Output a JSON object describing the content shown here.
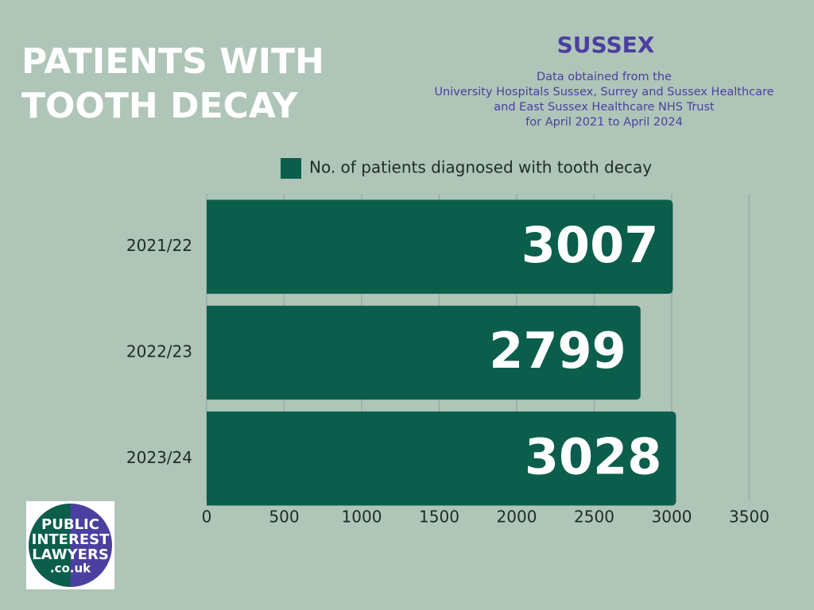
{
  "chart_data": {
    "type": "hbar",
    "title": [
      "PATIENTS WITH",
      "TOOTH DECAY"
    ],
    "subtitle": "SUSSEX",
    "notes": [
      "Data obtained from the",
      "University Hospitals Sussex, Surrey and Sussex Healthcare",
      "and East Sussex Healthcare NHS Trust",
      "for April 2021 to April 2024"
    ],
    "categories": [
      "2021/22",
      "2022/23",
      "2023/24"
    ],
    "series": [
      {
        "name": "No. of patients diagnosed with tooth decay",
        "color": "#0b5e4c",
        "values": [
          3007,
          2799,
          3028
        ]
      }
    ],
    "xlim": [
      0,
      3500
    ],
    "xticks": [
      0,
      500,
      1000,
      1500,
      2000,
      2500,
      3000,
      3500
    ],
    "grid": true
  },
  "logo": {
    "lines": [
      "PUBLIC",
      "INTEREST",
      "LAWYERS",
      ".co.uk"
    ]
  }
}
